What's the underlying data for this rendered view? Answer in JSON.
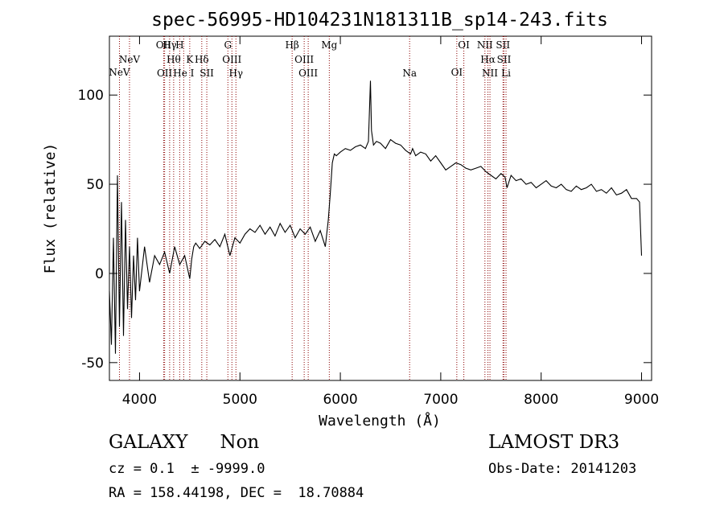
{
  "chart_data": {
    "type": "line",
    "title": "spec-56995-HD104231N181311B_sp14-243.fits",
    "xlabel": "Wavelength (Å)",
    "ylabel": "Flux (relative)",
    "xlim": [
      3700,
      9100
    ],
    "ylim": [
      -60,
      133
    ],
    "x_ticks": [
      4000,
      5000,
      6000,
      7000,
      8000,
      9000
    ],
    "y_ticks": [
      -50,
      0,
      50,
      100
    ],
    "grid": false,
    "line_color": "#000000",
    "marker_color": "#8b0000",
    "series": [
      {
        "x": [
          3700,
          3720,
          3740,
          3760,
          3780,
          3800,
          3820,
          3840,
          3860,
          3880,
          3900,
          3920,
          3940,
          3960,
          3980,
          4000,
          4050,
          4100,
          4150,
          4200,
          4250,
          4300,
          4350,
          4400,
          4450,
          4500,
          4520,
          4540,
          4560,
          4600,
          4650,
          4700,
          4750,
          4800,
          4850,
          4900,
          4950,
          5000,
          5050,
          5100,
          5150,
          5200,
          5250,
          5300,
          5350,
          5400,
          5450,
          5500,
          5550,
          5600,
          5650,
          5700,
          5750,
          5800,
          5850,
          5880,
          5900,
          5920,
          5940,
          5960,
          6000,
          6050,
          6100,
          6150,
          6200,
          6250,
          6280,
          6300,
          6310,
          6330,
          6360,
          6400,
          6450,
          6500,
          6550,
          6600,
          6650,
          6700,
          6720,
          6750,
          6800,
          6850,
          6900,
          6950,
          7000,
          7050,
          7100,
          7150,
          7200,
          7250,
          7300,
          7350,
          7400,
          7450,
          7500,
          7550,
          7600,
          7640,
          7660,
          7700,
          7750,
          7800,
          7850,
          7900,
          7950,
          8000,
          8050,
          8100,
          8150,
          8200,
          8250,
          8300,
          8350,
          8400,
          8450,
          8500,
          8550,
          8600,
          8650,
          8700,
          8750,
          8800,
          8850,
          8900,
          8950,
          8980,
          9000
        ],
        "y": [
          -10,
          -40,
          20,
          -45,
          55,
          -30,
          40,
          -35,
          30,
          -20,
          15,
          -25,
          10,
          -15,
          20,
          -10,
          15,
          -5,
          10,
          5,
          12,
          0,
          15,
          5,
          10,
          -3,
          8,
          15,
          17,
          14,
          18,
          16,
          19,
          15,
          22,
          10,
          20,
          17,
          22,
          25,
          23,
          27,
          22,
          26,
          21,
          28,
          23,
          27,
          20,
          25,
          22,
          26,
          18,
          24,
          15,
          30,
          45,
          62,
          67,
          66,
          68,
          70,
          69,
          71,
          72,
          70,
          74,
          108,
          80,
          72,
          74,
          73,
          70,
          75,
          73,
          72,
          69,
          67,
          70,
          66,
          68,
          67,
          63,
          66,
          62,
          58,
          60,
          62,
          61,
          59,
          58,
          59,
          60,
          57,
          55,
          53,
          56,
          54,
          48,
          55,
          52,
          53,
          50,
          51,
          48,
          50,
          52,
          49,
          48,
          50,
          47,
          46,
          49,
          47,
          48,
          50,
          46,
          47,
          45,
          48,
          44,
          45,
          47,
          42,
          42,
          40,
          10
        ]
      }
    ],
    "lines": [
      {
        "name": "NeV",
        "wavelength": 3800,
        "row": 2
      },
      {
        "name": "NeV",
        "wavelength": 3900,
        "row": 1
      },
      {
        "name": "OII",
        "wavelength": 4240,
        "row": 0
      },
      {
        "name": "OII",
        "wavelength": 4250,
        "row": 3
      },
      {
        "name": "Hγ",
        "wavelength": 4300,
        "row": 0
      },
      {
        "name": "Hθ",
        "wavelength": 4340,
        "row": 1
      },
      {
        "name": "H",
        "wavelength": 4400,
        "row": 0
      },
      {
        "name": "He I",
        "wavelength": 4440,
        "row": 3
      },
      {
        "name": "K",
        "wavelength": 4500,
        "row": 1
      },
      {
        "name": "Hδ",
        "wavelength": 4620,
        "row": 1
      },
      {
        "name": "SII",
        "wavelength": 4670,
        "row": 3
      },
      {
        "name": "G",
        "wavelength": 4880,
        "row": 0
      },
      {
        "name": "OIII",
        "wavelength": 4920,
        "row": 1
      },
      {
        "name": "Hγ",
        "wavelength": 4960,
        "row": 3
      },
      {
        "name": "Hβ",
        "wavelength": 5520,
        "row": 0
      },
      {
        "name": "OIII",
        "wavelength": 5640,
        "row": 1
      },
      {
        "name": "OIII",
        "wavelength": 5680,
        "row": 3
      },
      {
        "name": "Mg",
        "wavelength": 5890,
        "row": 0
      },
      {
        "name": "Na",
        "wavelength": 6690,
        "row": 3
      },
      {
        "name": "OI",
        "wavelength": 7160,
        "row": 2
      },
      {
        "name": "OI",
        "wavelength": 7230,
        "row": 0
      },
      {
        "name": "NII",
        "wavelength": 7440,
        "row": 0
      },
      {
        "name": "Hα",
        "wavelength": 7470,
        "row": 1
      },
      {
        "name": "NII",
        "wavelength": 7490,
        "row": 3
      },
      {
        "name": "SII",
        "wavelength": 7620,
        "row": 0
      },
      {
        "name": "SII",
        "wavelength": 7630,
        "row": 1
      },
      {
        "name": "Li",
        "wavelength": 7650,
        "row": 3
      }
    ]
  },
  "info": {
    "class": "GALAXY",
    "subclass": "Non",
    "cz": "cz = 0.1  ± -9999.0",
    "coords": "RA = 158.44198, DEC =  18.70884",
    "survey": "LAMOST DR3",
    "obs_date": "Obs-Date: 20141203"
  }
}
